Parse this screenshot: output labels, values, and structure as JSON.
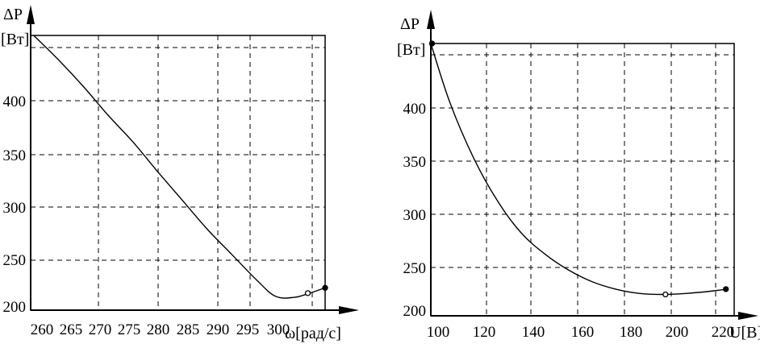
{
  "chart_data": [
    {
      "type": "line",
      "ylabel_symbol": "ΔP",
      "ylabel_unit": "[Вт]",
      "xlabel": "ω[рад/с]",
      "x_ticks": [
        "260",
        "265",
        "270",
        "275",
        "280",
        "285",
        "290",
        "295",
        "300"
      ],
      "y_ticks": [
        "200",
        "250",
        "300",
        "350",
        "400"
      ],
      "grid": true,
      "xlim": [
        257.5,
        305
      ],
      "ylim": [
        192,
        450
      ],
      "series": [
        {
          "x": [
            258,
            262,
            266,
            270,
            274,
            278,
            282,
            286,
            290,
            294,
            297,
            300,
            302.5,
            305
          ],
          "y": [
            450,
            427,
            402,
            375,
            350,
            322,
            295,
            268,
            244,
            220,
            205,
            204,
            208,
            213
          ]
        }
      ],
      "markers": [
        {
          "x": 302.2,
          "y": 208
        },
        {
          "x": 305,
          "y": 213
        }
      ]
    },
    {
      "type": "line",
      "ylabel_symbol": "ΔP",
      "ylabel_unit": "[Вт]",
      "xlabel": "U[В]",
      "x_ticks": [
        "100",
        "120",
        "140",
        "160",
        "180",
        "200",
        "220"
      ],
      "y_ticks": [
        "200",
        "250",
        "300",
        "350",
        "400"
      ],
      "grid": true,
      "xlim": [
        97,
        225
      ],
      "ylim": [
        192,
        447
      ],
      "series": [
        {
          "x": [
            97,
            105,
            115,
            125,
            135,
            145,
            155,
            165,
            175,
            185,
            195,
            205,
            215,
            222
          ],
          "y": [
            447,
            392,
            340,
            300,
            270,
            250,
            235,
            224,
            217,
            213,
            212,
            213,
            215,
            217
          ]
        }
      ],
      "markers": [
        {
          "x": 97.5,
          "y": 447
        },
        {
          "x": 196,
          "y": 212
        },
        {
          "x": 221.5,
          "y": 217
        }
      ]
    }
  ]
}
